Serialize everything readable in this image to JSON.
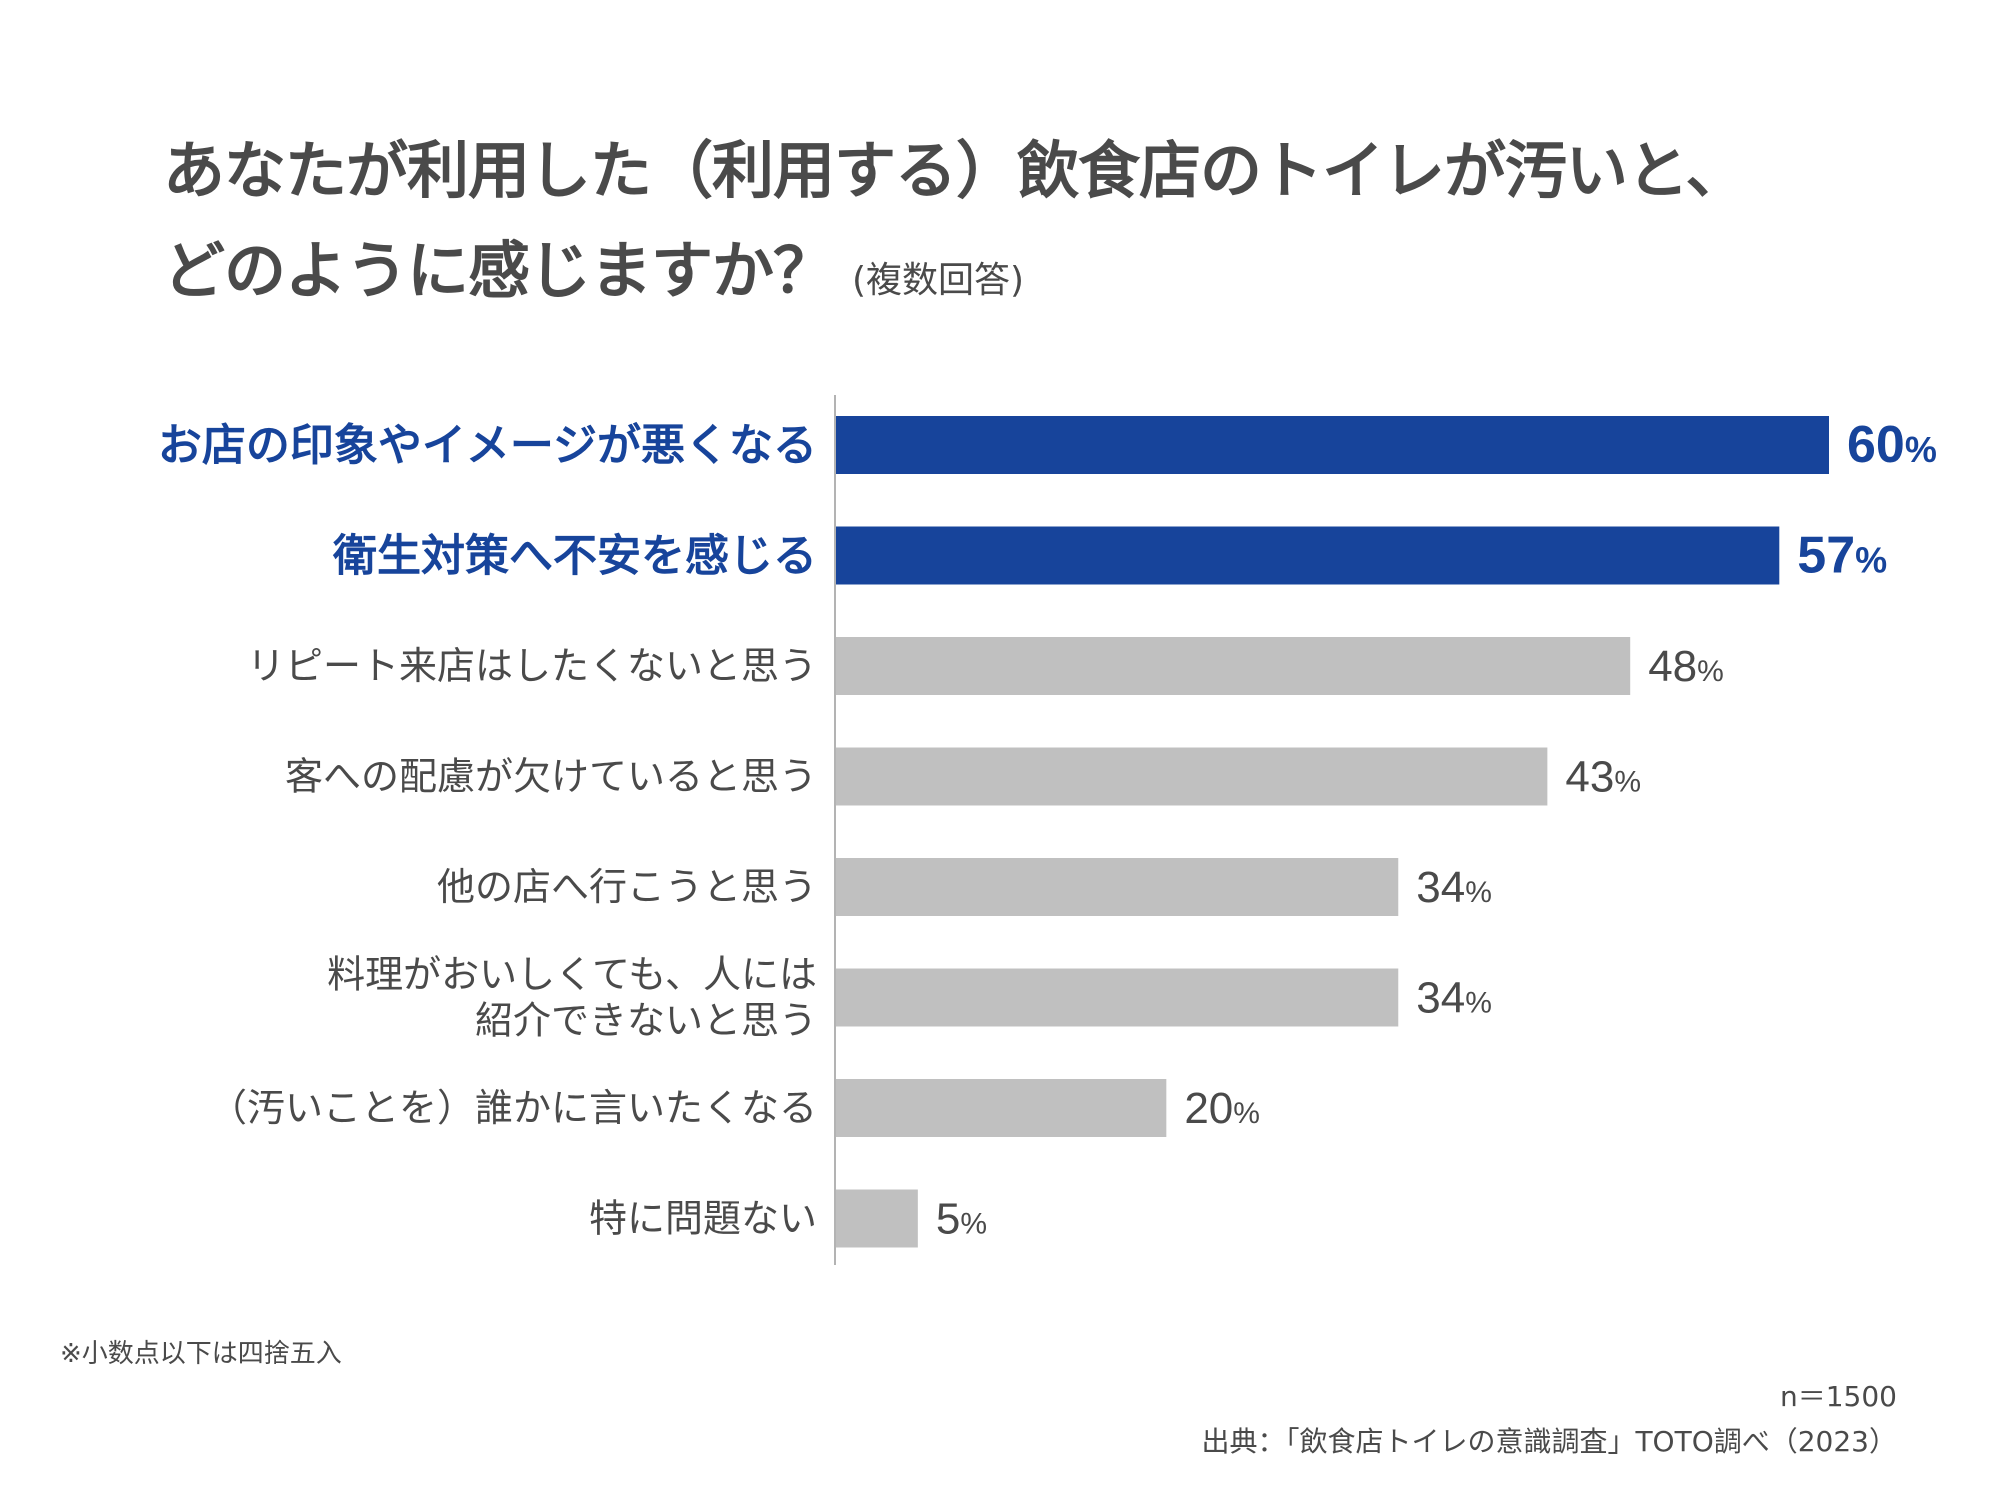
{
  "title_line1": "あなたが利用した（利用する）飲食店のトイレが汚いと、",
  "title_line2": "どのように感じますか？",
  "subtitle": "(複数回答)",
  "footnote": "※小数点以下は四捨五入",
  "sample_size": "n＝1500",
  "source": "出典：「飲食店トイレの意識調査」TOTO調べ（2023）",
  "colors": {
    "highlight": "#17449b",
    "normal": "#c0c0c0",
    "text": "#4a4a4a",
    "axis": "#b3b3b3"
  },
  "chart_data": {
    "type": "bar",
    "orientation": "horizontal",
    "categories": [
      "お店の印象やイメージが悪くなる",
      "衛生対策へ不安を感じる",
      "リピート来店はしたくないと思う",
      "客への配慮が欠けていると思う",
      "他の店へ行こうと思う",
      "料理がおいしくても、人には\n紹介できないと思う",
      "（汚いことを）誰かに言いたくなる",
      "特に問題ない"
    ],
    "values": [
      60,
      57,
      48,
      43,
      34,
      34,
      20,
      5
    ],
    "value_suffix": "%",
    "highlighted": [
      true,
      true,
      false,
      false,
      false,
      false,
      false,
      false
    ],
    "xlim": [
      0,
      60
    ],
    "grid": false,
    "legend": "none"
  }
}
